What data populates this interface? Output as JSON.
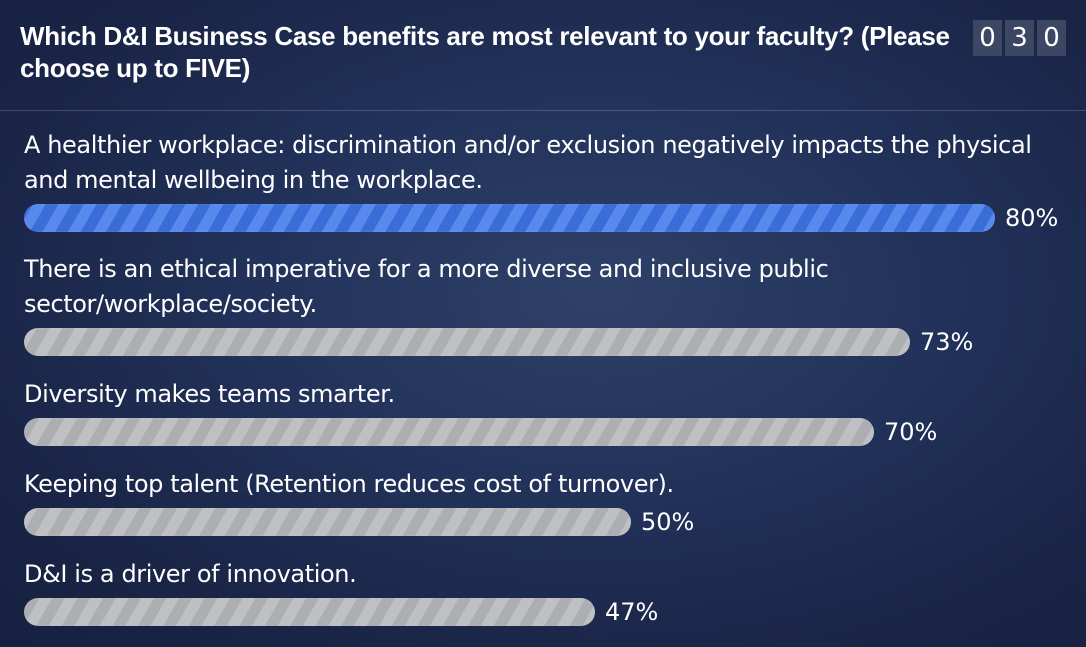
{
  "header": {
    "question": "Which D&I Business Case benefits are most relevant to your faculty? (Please choose up to FIVE)",
    "response_count_digits": [
      "0",
      "3",
      "0"
    ]
  },
  "chart_data": {
    "type": "bar",
    "orientation": "horizontal",
    "categories": [
      "A healthier workplace: discrimination and/or exclusion negatively impacts the physical and mental wellbeing in the workplace.",
      "There is an ethical imperative for a more diverse and inclusive public sector/workplace/society.",
      "Diversity makes teams smarter.",
      "Keeping top talent (Retention reduces cost of turnover).",
      "D&I is a driver of innovation."
    ],
    "values": [
      80,
      73,
      70,
      50,
      47
    ],
    "value_labels": [
      "80%",
      "73%",
      "70%",
      "50%",
      "47%"
    ],
    "unit": "%",
    "xlim": [
      0,
      100
    ],
    "title": "",
    "xlabel": "",
    "ylabel": "",
    "grid": false,
    "legend": "none",
    "colors": {
      "highlight": "#3f76ea",
      "default": "#b8b9bd",
      "background": "#1e2b4f",
      "text": "#ffffff"
    }
  }
}
